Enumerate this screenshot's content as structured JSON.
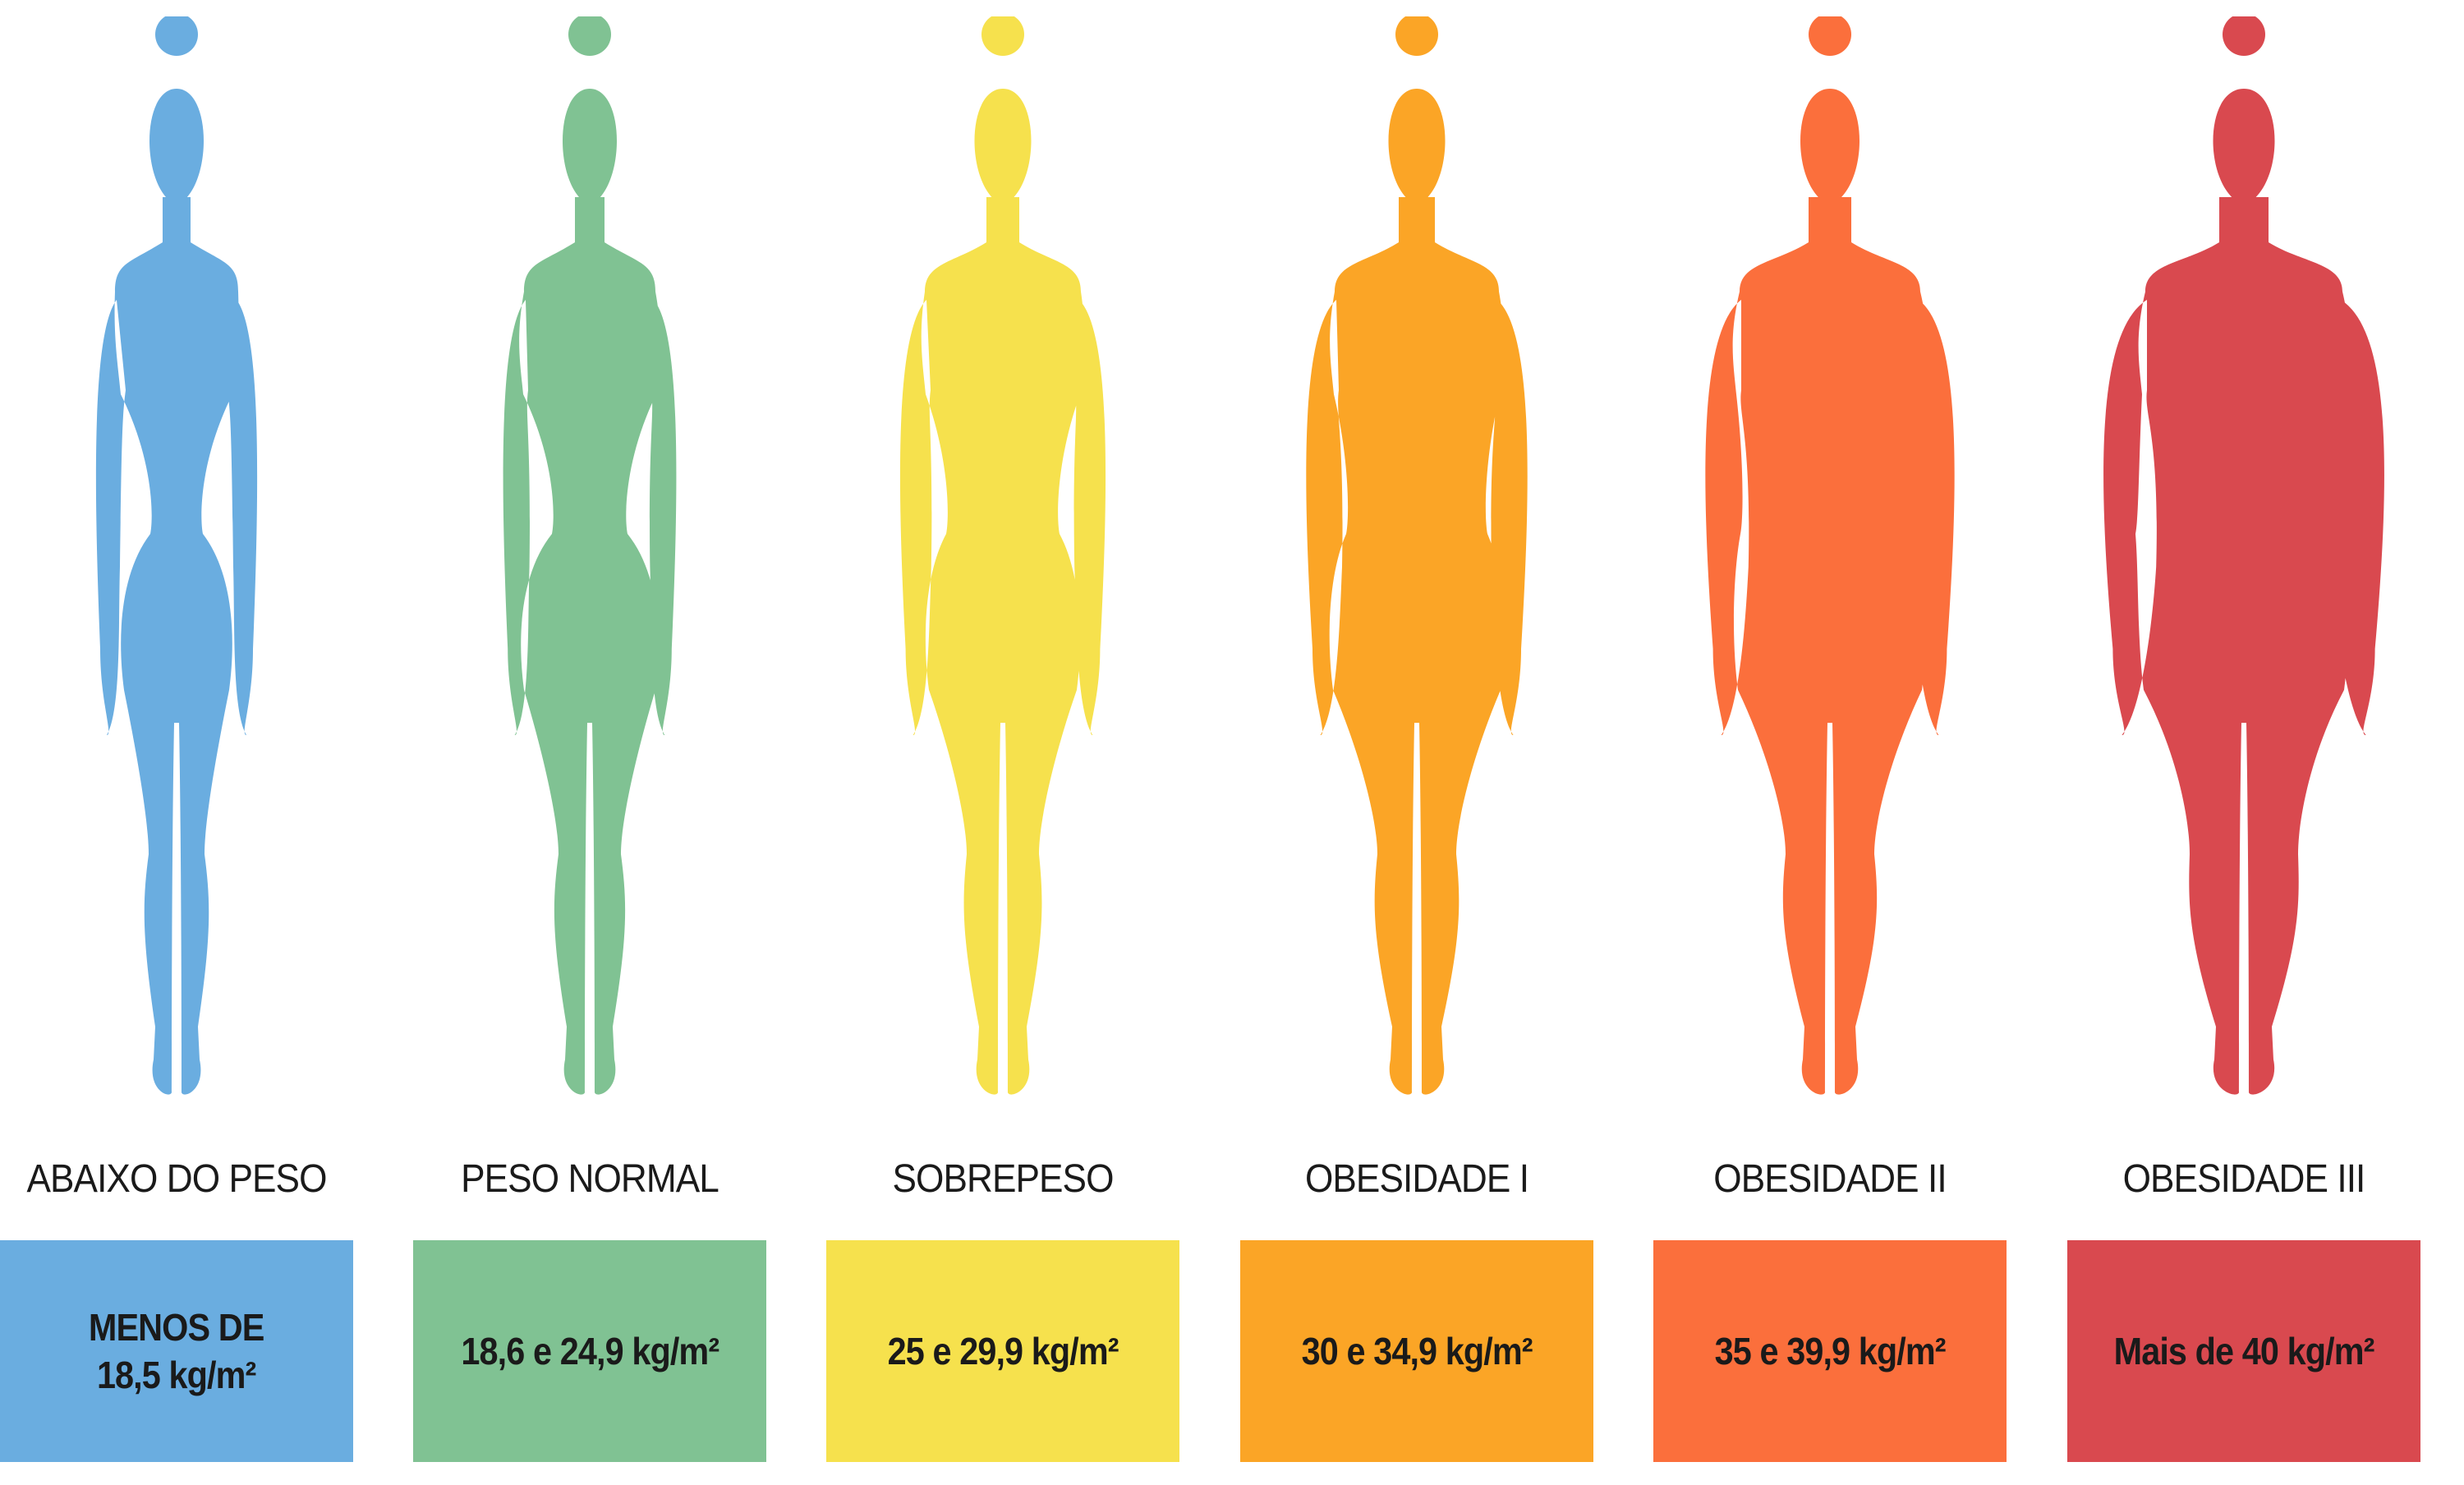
{
  "categories": [
    {
      "label": "ABAIXO DO PESO",
      "range": "MENOS DE\n18,5 kg/m²",
      "color": "#6aade0",
      "build": "slim"
    },
    {
      "label": "PESO NORMAL",
      "range": "18,6 e 24,9 kg/m²",
      "color": "#80c293",
      "build": "normal"
    },
    {
      "label": "SOBREPESO",
      "range": "25 e 29,9 kg/m²",
      "color": "#f6e14d",
      "build": "overweight"
    },
    {
      "label": "OBESIDADE I",
      "range": "30 e 34,9 kg/m²",
      "color": "#fba526",
      "build": "obese-1"
    },
    {
      "label": "OBESIDADE II",
      "range": "35 e 39,9 kg/m²",
      "color": "#fb6f3c",
      "build": "obese-2"
    },
    {
      "label": "OBESIDADE III",
      "range": "Mais de 40 kg/m²",
      "color": "#d9494f",
      "build": "obese-3"
    }
  ]
}
